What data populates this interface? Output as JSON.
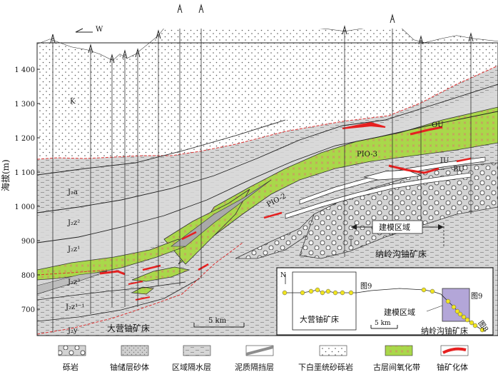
{
  "y_axis": {
    "label": "海拔(m)",
    "ticks": [
      "1 400",
      "1 300",
      "1 200",
      "1 100",
      "1 000",
      "900",
      "800",
      "700"
    ]
  },
  "direction": "W",
  "layers": {
    "k": "K",
    "j2a": "J₂a",
    "j2z2": "J₂z²",
    "j2z1": "J₂z¹",
    "j2z3": "J₂z³",
    "j2z11": "J₂z¹⁻¹",
    "j2y": "J₂y"
  },
  "oxidation_zones": {
    "pio3": "PIO-3",
    "pio2": "PIO-2",
    "ou": "OU",
    "iu": "IU",
    "bu": "BU"
  },
  "labels": {
    "modeling_area": "建模区域",
    "naling_deposit": "纳岭沟铀矿床",
    "daying_deposit": "大营铀矿床",
    "scale": "5 km"
  },
  "inset": {
    "north": "N",
    "fig9_a": "图9",
    "fig9_b": "图9",
    "fig8": "图8",
    "modeling_area": "建模区域",
    "daying": "大营铀矿床",
    "naling": "纳岭沟铀矿床",
    "scale": "5 km"
  },
  "legend": [
    {
      "label": "砾岩"
    },
    {
      "label": "铀储层砂体"
    },
    {
      "label": "区域隔水层"
    },
    {
      "label": "泥质隔挡层"
    },
    {
      "label": "下白垩统砂砾岩"
    },
    {
      "label": "古层间氧化带"
    },
    {
      "label": "铀矿化体"
    }
  ]
}
